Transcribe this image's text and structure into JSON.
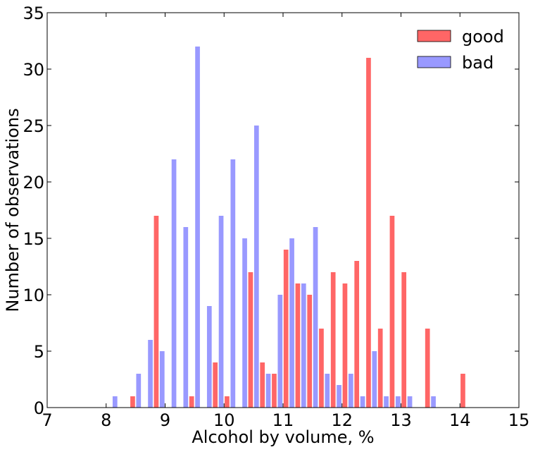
{
  "chart_data": {
    "type": "bar",
    "title": "",
    "xlabel": "Alcohol by volume, %",
    "ylabel": "Number of observations",
    "xlim": [
      7,
      15
    ],
    "ylim": [
      0,
      35
    ],
    "xticks": [
      "7",
      "8",
      "9",
      "10",
      "11",
      "12",
      "13",
      "14",
      "15"
    ],
    "yticks": [
      "0",
      "5",
      "10",
      "15",
      "20",
      "25",
      "30",
      "35"
    ],
    "legend_position": "top-right",
    "grid": false,
    "series": [
      {
        "name": "good",
        "color": "#ff6666",
        "x": [
          8.45,
          8.85,
          9.45,
          9.85,
          10.05,
          10.45,
          10.65,
          10.85,
          11.05,
          11.25,
          11.45,
          11.65,
          11.85,
          12.05,
          12.25,
          12.45,
          12.65,
          12.85,
          13.05,
          13.45,
          14.05
        ],
        "values": [
          1,
          17,
          1,
          4,
          1,
          12,
          4,
          3,
          14,
          11,
          10,
          7,
          12,
          11,
          13,
          31,
          7,
          17,
          12,
          7,
          3
        ]
      },
      {
        "name": "bad",
        "color": "#9999ff",
        "x": [
          8.15,
          8.55,
          8.75,
          8.95,
          9.15,
          9.35,
          9.55,
          9.75,
          9.95,
          10.15,
          10.35,
          10.55,
          10.75,
          10.95,
          11.15,
          11.35,
          11.55,
          11.75,
          11.95,
          12.15,
          12.35,
          12.55,
          12.75,
          12.95,
          13.15,
          13.55
        ],
        "values": [
          1,
          3,
          6,
          5,
          22,
          16,
          32,
          9,
          17,
          22,
          15,
          25,
          3,
          10,
          15,
          11,
          16,
          3,
          2,
          3,
          1,
          5,
          1,
          1,
          1,
          1
        ]
      }
    ]
  }
}
